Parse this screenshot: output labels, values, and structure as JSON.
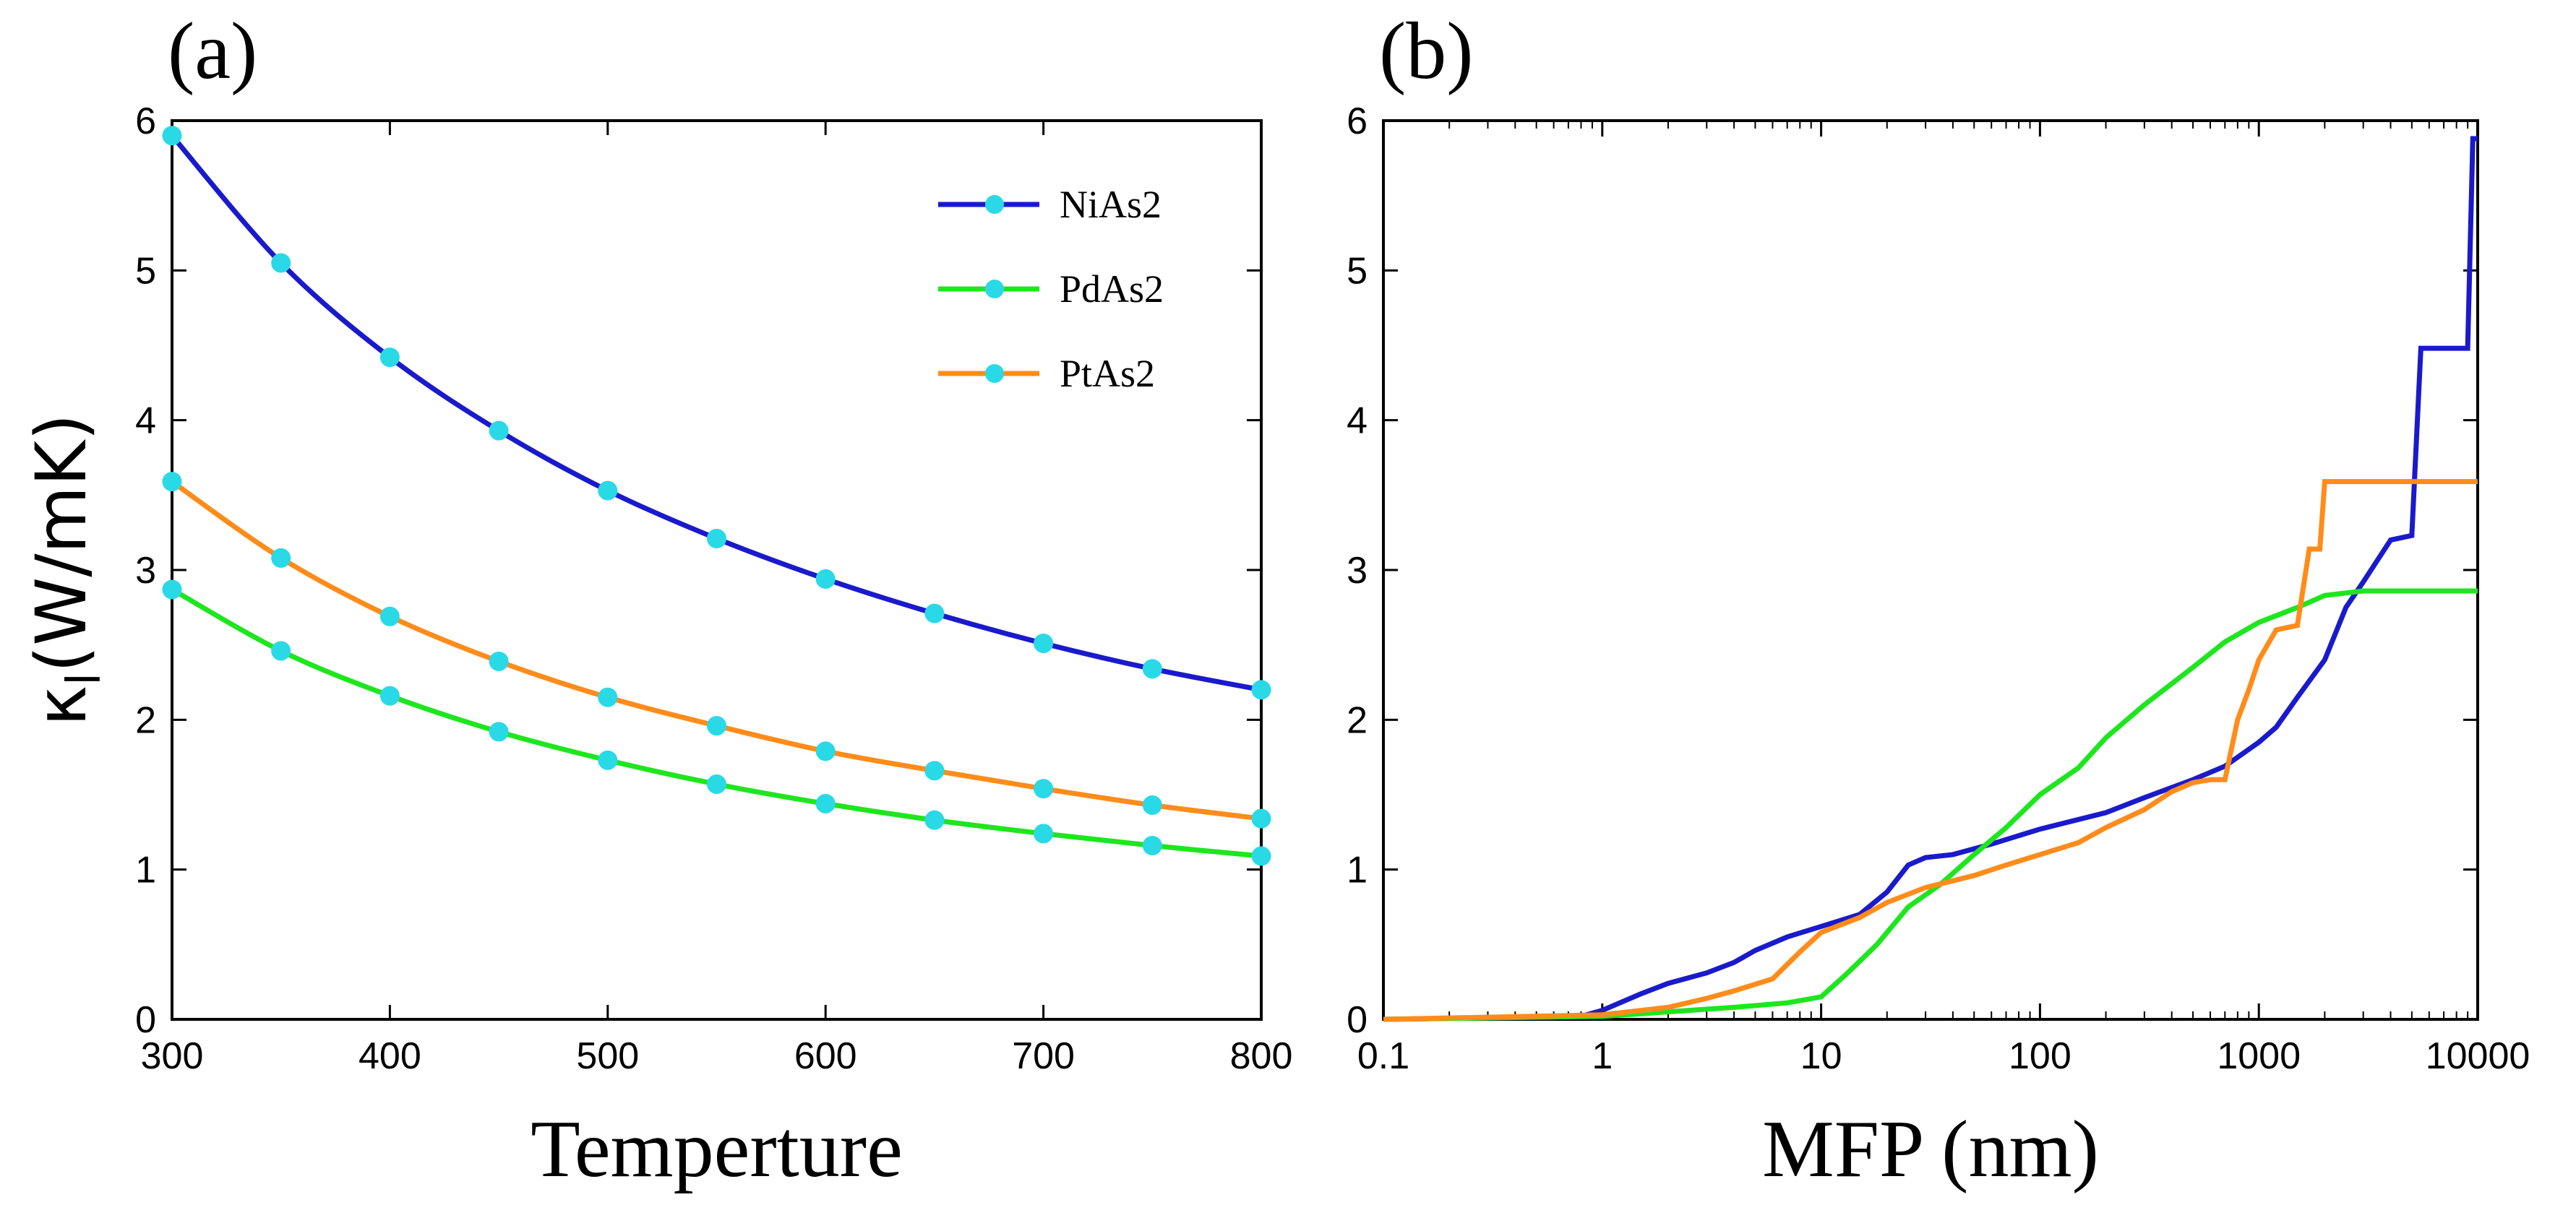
{
  "chart_data": [
    {
      "type": "line",
      "panel_label": "(a)",
      "xlabel": "Temperture",
      "ylabel": "κl(W/mK)",
      "ylabel_main": "κ",
      "ylabel_sub": "l",
      "ylabel_unit": "(W/mK)",
      "xlim": [
        300,
        800
      ],
      "ylim": [
        0,
        6
      ],
      "xticks": [
        "300",
        "400",
        "500",
        "600",
        "700",
        "800"
      ],
      "yticks": [
        "0",
        "1",
        "2",
        "3",
        "4",
        "5",
        "6"
      ],
      "legend_position": "top-right",
      "x": [
        300,
        350,
        400,
        450,
        500,
        550,
        600,
        650,
        700,
        750,
        800
      ],
      "series": [
        {
          "name": "NiAs2",
          "color": "#1a1acc",
          "values": [
            5.9,
            5.05,
            4.42,
            3.93,
            3.53,
            3.21,
            2.94,
            2.71,
            2.51,
            2.34,
            2.2
          ]
        },
        {
          "name": "PdAs2",
          "color": "#1ee61e",
          "values": [
            2.87,
            2.46,
            2.16,
            1.92,
            1.73,
            1.57,
            1.44,
            1.33,
            1.24,
            1.16,
            1.09
          ]
        },
        {
          "name": "PtAs2",
          "color": "#ff8c1a",
          "values": [
            3.59,
            3.08,
            2.69,
            2.39,
            2.15,
            1.96,
            1.79,
            1.66,
            1.54,
            1.43,
            1.34
          ]
        }
      ],
      "marker_color": "#2ad9e6"
    },
    {
      "type": "line",
      "panel_label": "(b)",
      "xlabel": "MFP (nm)",
      "ylabel": "",
      "xscale": "log",
      "xlim": [
        0.1,
        10000
      ],
      "ylim": [
        0,
        6
      ],
      "xticks": [
        "0.1",
        "1",
        "10",
        "100",
        "1000",
        "10000"
      ],
      "yticks": [
        "0",
        "1",
        "2",
        "3",
        "4",
        "5",
        "6"
      ],
      "series": [
        {
          "name": "NiAs2",
          "color": "#1a1acc",
          "x": [
            0.1,
            0.8,
            1,
            1.5,
            2,
            3,
            4,
            5,
            7,
            10,
            15,
            20,
            25,
            30,
            40,
            60,
            100,
            200,
            300,
            500,
            700,
            1000,
            1200,
            1500,
            2000,
            2500,
            3000,
            4000,
            5000,
            5500,
            6000,
            8000,
            9000,
            9500,
            10000
          ],
          "values": [
            0,
            0.02,
            0.06,
            0.17,
            0.24,
            0.31,
            0.38,
            0.46,
            0.55,
            0.62,
            0.7,
            0.85,
            1.03,
            1.08,
            1.1,
            1.17,
            1.27,
            1.38,
            1.48,
            1.6,
            1.69,
            1.85,
            1.95,
            2.15,
            2.4,
            2.75,
            2.92,
            3.2,
            3.23,
            4.48,
            4.48,
            4.48,
            4.48,
            5.88,
            5.88
          ]
        },
        {
          "name": "PdAs2",
          "color": "#1ee61e",
          "x": [
            0.1,
            1,
            2,
            4,
            7,
            10,
            13,
            18,
            25,
            35,
            50,
            70,
            100,
            150,
            200,
            300,
            500,
            700,
            1000,
            1500,
            2000,
            3000,
            5000,
            10000
          ],
          "values": [
            0,
            0.02,
            0.05,
            0.08,
            0.11,
            0.15,
            0.3,
            0.5,
            0.75,
            0.9,
            1.1,
            1.28,
            1.5,
            1.68,
            1.88,
            2.1,
            2.35,
            2.52,
            2.65,
            2.75,
            2.83,
            2.86,
            2.86,
            2.86
          ]
        },
        {
          "name": "PtAs2",
          "color": "#ff8c1a",
          "x": [
            0.1,
            1,
            2,
            3,
            4,
            6,
            8,
            10,
            15,
            20,
            30,
            50,
            70,
            100,
            150,
            200,
            300,
            400,
            500,
            600,
            700,
            800,
            900,
            1000,
            1200,
            1500,
            1700,
            1900,
            2000,
            2500,
            10000
          ],
          "values": [
            0,
            0.03,
            0.08,
            0.14,
            0.19,
            0.27,
            0.45,
            0.58,
            0.68,
            0.78,
            0.88,
            0.96,
            1.03,
            1.1,
            1.18,
            1.28,
            1.4,
            1.52,
            1.58,
            1.6,
            1.6,
            2.0,
            2.2,
            2.4,
            2.6,
            2.63,
            3.14,
            3.14,
            3.59,
            3.59,
            3.59
          ]
        }
      ]
    }
  ]
}
